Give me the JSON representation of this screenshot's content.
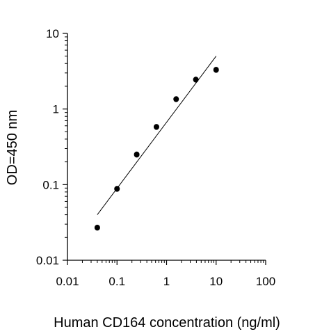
{
  "chart_data": {
    "type": "scatter",
    "title": "",
    "xlabel": "Human CD164 concentration (ng/ml)",
    "ylabel": "OD=450 nm",
    "xscale": "log",
    "yscale": "log",
    "xlim": [
      0.01,
      100
    ],
    "ylim": [
      0.01,
      10
    ],
    "xticks": [
      "0.01",
      "0.1",
      "1",
      "10",
      "100"
    ],
    "yticks": [
      "0.01",
      "0.1",
      "1",
      "10"
    ],
    "grid": false,
    "series": [
      {
        "points": [
          {
            "x": 0.04,
            "y": 0.027
          },
          {
            "x": 0.1,
            "y": 0.088
          },
          {
            "x": 0.25,
            "y": 0.25
          },
          {
            "x": 0.625,
            "y": 0.58
          },
          {
            "x": 1.56,
            "y": 1.35
          },
          {
            "x": 3.9,
            "y": 2.45
          },
          {
            "x": 10,
            "y": 3.3
          }
        ],
        "color": "#000000"
      }
    ],
    "fit_line": {
      "x": [
        0.04,
        10
      ],
      "y": [
        0.04,
        5.0
      ],
      "color": "#000000"
    }
  }
}
